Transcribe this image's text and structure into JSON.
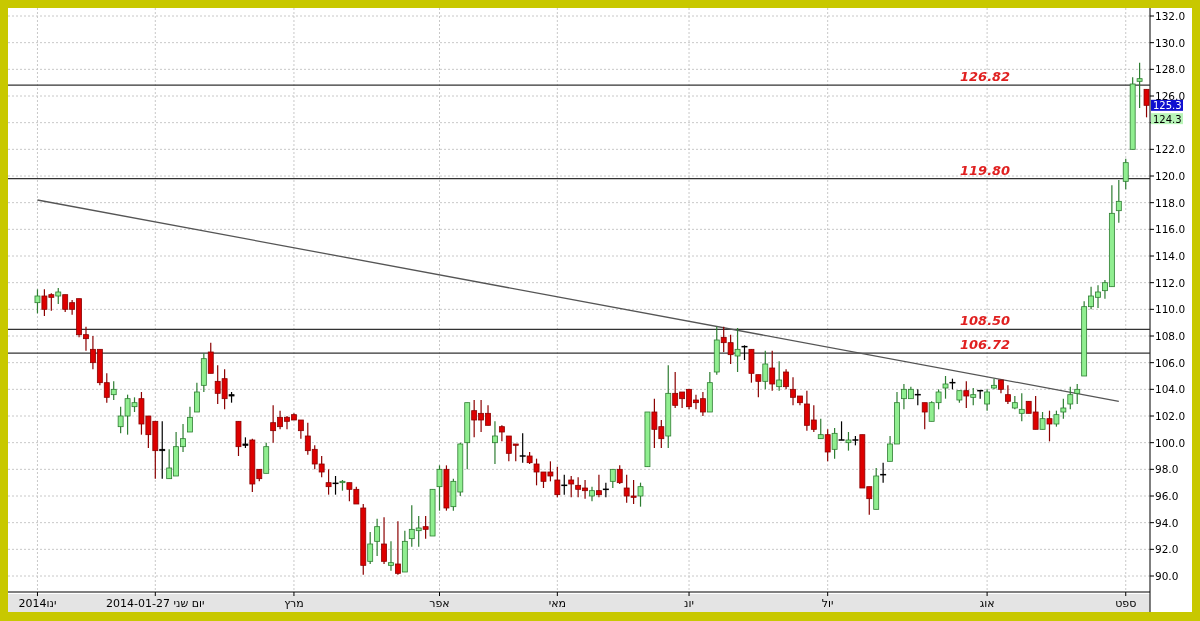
{
  "chart_data": {
    "type": "candlestick",
    "categories": [
      "2014ינו",
      null,
      null,
      null,
      null,
      null,
      null,
      null,
      null,
      null,
      null,
      null,
      null,
      null,
      null,
      null,
      null,
      "2014-01-27 יום שני",
      null,
      null,
      null,
      null,
      null,
      null,
      null,
      null,
      null,
      null,
      null,
      null,
      null,
      null,
      null,
      null,
      null,
      null,
      null,
      "מרץ",
      null,
      null,
      null,
      null,
      null,
      null,
      null,
      null,
      null,
      null,
      null,
      null,
      null,
      null,
      null,
      null,
      null,
      null,
      null,
      null,
      "אפר",
      null,
      null,
      null,
      null,
      null,
      null,
      null,
      null,
      null,
      null,
      null,
      null,
      null,
      null,
      null,
      null,
      "מאי",
      null,
      null,
      null,
      null,
      null,
      null,
      null,
      null,
      null,
      null,
      null,
      null,
      null,
      null,
      null,
      null,
      null,
      null,
      "יונ",
      null,
      null,
      null,
      null,
      null,
      null,
      null,
      null,
      null,
      null,
      null,
      null,
      null,
      null,
      null,
      null,
      null,
      null,
      null,
      "יול",
      null,
      null,
      null,
      null,
      null,
      null,
      null,
      null,
      null,
      null,
      null,
      null,
      null,
      null,
      null,
      null,
      null,
      null,
      null,
      null,
      null,
      null,
      "אוג",
      null,
      null,
      null,
      null,
      null,
      null,
      null,
      null,
      null,
      null,
      null,
      null,
      null,
      null,
      null,
      null,
      null,
      null,
      null,
      "ספט",
      null,
      null,
      null
    ],
    "ohlc": [
      [
        110.5,
        111.5,
        109.7,
        111.0
      ],
      [
        111.0,
        111.5,
        109.5,
        110.0
      ],
      [
        111.1,
        111.2,
        109.9,
        110.9
      ],
      [
        111.0,
        111.6,
        110.4,
        111.3
      ],
      [
        111.1,
        111.1,
        109.8,
        110.0
      ],
      [
        110.5,
        110.7,
        109.6,
        110.0
      ],
      [
        110.8,
        110.8,
        107.9,
        108.1
      ],
      [
        108.1,
        108.7,
        106.9,
        107.8
      ],
      [
        107.0,
        108.0,
        105.5,
        106.0
      ],
      [
        107.0,
        107.0,
        104.3,
        104.5
      ],
      [
        104.5,
        105.2,
        103.0,
        103.4
      ],
      [
        103.6,
        104.6,
        103.2,
        104.0
      ],
      [
        101.2,
        102.7,
        100.7,
        102.0
      ],
      [
        102.0,
        103.6,
        100.6,
        103.3
      ],
      [
        102.7,
        103.4,
        102.3,
        103.0
      ],
      [
        103.3,
        103.8,
        100.6,
        101.4
      ],
      [
        102.0,
        102.0,
        99.6,
        100.6
      ],
      [
        101.6,
        101.6,
        97.3,
        99.4
      ],
      [
        99.5,
        101.6,
        97.3,
        99.4
      ],
      [
        97.3,
        99.5,
        97.3,
        98.1
      ],
      [
        97.5,
        100.8,
        97.5,
        99.7
      ],
      [
        99.7,
        101.4,
        99.3,
        100.3
      ],
      [
        100.8,
        102.7,
        100.8,
        101.9
      ],
      [
        102.3,
        104.5,
        102.3,
        103.8
      ],
      [
        104.3,
        106.7,
        103.8,
        106.3
      ],
      [
        106.8,
        107.5,
        105.2,
        105.2
      ],
      [
        104.6,
        105.8,
        102.9,
        103.7
      ],
      [
        104.8,
        105.5,
        102.5,
        103.3
      ],
      [
        103.6,
        103.8,
        103.0,
        103.5
      ],
      [
        101.6,
        101.6,
        99.0,
        99.7
      ],
      [
        99.9,
        100.4,
        99.6,
        99.8
      ],
      [
        100.2,
        100.3,
        96.3,
        96.9
      ],
      [
        98.0,
        98.0,
        97.1,
        97.3
      ],
      [
        97.7,
        100.0,
        97.7,
        99.7
      ],
      [
        101.5,
        102.8,
        100.0,
        100.9
      ],
      [
        101.9,
        102.4,
        101.0,
        101.2
      ],
      [
        101.9,
        102.0,
        101.0,
        101.6
      ],
      [
        102.1,
        102.2,
        101.7,
        101.7
      ],
      [
        101.7,
        101.7,
        100.3,
        100.9
      ],
      [
        100.5,
        101.5,
        99.1,
        99.4
      ],
      [
        99.5,
        99.8,
        98.0,
        98.4
      ],
      [
        98.4,
        99.0,
        97.4,
        97.8
      ],
      [
        97.0,
        98.0,
        96.1,
        96.7
      ],
      [
        96.95,
        97.5,
        96.1,
        96.9
      ],
      [
        97.0,
        97.2,
        96.4,
        97.1
      ],
      [
        97.0,
        97.0,
        95.6,
        96.5
      ],
      [
        96.5,
        96.7,
        95.4,
        95.4
      ],
      [
        95.1,
        95.4,
        90.1,
        90.8
      ],
      [
        91.1,
        93.3,
        90.9,
        92.4
      ],
      [
        92.6,
        94.3,
        91.5,
        93.7
      ],
      [
        92.4,
        94.4,
        90.9,
        91.1
      ],
      [
        90.8,
        92.6,
        90.4,
        91.0
      ],
      [
        90.9,
        94.1,
        90.1,
        90.2
      ],
      [
        90.3,
        93.4,
        90.3,
        92.6
      ],
      [
        92.8,
        95.3,
        92.2,
        93.5
      ],
      [
        93.4,
        94.5,
        92.2,
        93.6
      ],
      [
        93.7,
        94.5,
        92.8,
        93.5
      ],
      [
        93.0,
        96.5,
        93.0,
        96.5
      ],
      [
        96.7,
        98.3,
        94.9,
        98.0
      ],
      [
        98.0,
        98.3,
        94.9,
        95.1
      ],
      [
        95.2,
        97.3,
        94.9,
        97.1
      ],
      [
        96.3,
        100.0,
        96.0,
        99.9
      ],
      [
        100.0,
        103.0,
        98.0,
        103.0
      ],
      [
        102.4,
        103.2,
        100.4,
        101.7
      ],
      [
        102.2,
        103.2,
        100.8,
        101.7
      ],
      [
        102.2,
        102.8,
        101.3,
        101.3
      ],
      [
        100.0,
        101.6,
        98.4,
        100.5
      ],
      [
        101.2,
        101.3,
        100.1,
        100.8
      ],
      [
        100.5,
        100.5,
        98.6,
        99.2
      ],
      [
        99.9,
        99.9,
        98.6,
        99.8
      ],
      [
        99.0,
        100.7,
        98.5,
        99.0
      ],
      [
        99.0,
        99.3,
        98.4,
        98.5
      ],
      [
        98.4,
        98.8,
        96.8,
        97.8
      ],
      [
        97.8,
        97.8,
        96.6,
        97.1
      ],
      [
        97.8,
        98.6,
        97.1,
        97.5
      ],
      [
        97.2,
        98.2,
        95.9,
        96.1
      ],
      [
        96.8,
        97.6,
        96.1,
        96.8
      ],
      [
        97.2,
        97.5,
        95.9,
        96.9
      ],
      [
        96.8,
        97.4,
        95.9,
        96.5
      ],
      [
        96.6,
        97.2,
        95.8,
        96.4
      ],
      [
        96.0,
        96.7,
        95.6,
        96.4
      ],
      [
        96.4,
        97.6,
        95.9,
        96.1
      ],
      [
        96.5,
        97.0,
        95.9,
        96.5
      ],
      [
        97.1,
        98.0,
        96.6,
        98.0
      ],
      [
        98.0,
        98.3,
        96.9,
        97.0
      ],
      [
        96.6,
        97.6,
        95.5,
        96.0
      ],
      [
        96.0,
        97.2,
        95.4,
        95.9
      ],
      [
        96.0,
        97.0,
        95.2,
        96.7
      ],
      [
        98.2,
        102.3,
        98.2,
        102.3
      ],
      [
        102.3,
        103.3,
        99.6,
        101.0
      ],
      [
        101.2,
        101.7,
        99.6,
        100.3
      ],
      [
        100.5,
        105.8,
        99.6,
        103.7
      ],
      [
        103.7,
        105.3,
        102.6,
        102.8
      ],
      [
        103.8,
        103.8,
        102.6,
        103.3
      ],
      [
        104.0,
        104.0,
        102.5,
        102.7
      ],
      [
        103.2,
        103.6,
        102.5,
        103.0
      ],
      [
        103.3,
        103.8,
        102.0,
        102.3
      ],
      [
        102.3,
        105.3,
        102.3,
        104.5
      ],
      [
        105.3,
        108.7,
        105.1,
        107.7
      ],
      [
        107.9,
        108.7,
        106.8,
        107.5
      ],
      [
        107.5,
        108.1,
        105.9,
        106.6
      ],
      [
        106.5,
        108.6,
        105.3,
        107.0
      ],
      [
        107.2,
        107.3,
        106.2,
        107.2
      ],
      [
        107.0,
        107.0,
        104.5,
        105.2
      ],
      [
        105.1,
        105.1,
        103.4,
        104.6
      ],
      [
        104.6,
        106.9,
        104.0,
        105.9
      ],
      [
        105.6,
        106.9,
        103.9,
        104.4
      ],
      [
        104.2,
        106.1,
        103.9,
        104.7
      ],
      [
        105.3,
        105.5,
        104.0,
        104.2
      ],
      [
        104.0,
        104.9,
        102.8,
        103.4
      ],
      [
        103.5,
        103.5,
        102.8,
        103.0
      ],
      [
        102.9,
        103.9,
        100.9,
        101.3
      ],
      [
        101.7,
        102.8,
        100.8,
        101.0
      ],
      [
        100.3,
        101.8,
        100.3,
        100.6
      ],
      [
        100.6,
        101.0,
        98.6,
        99.3
      ],
      [
        99.5,
        101.1,
        98.8,
        100.7
      ],
      [
        100.2,
        101.6,
        100.2,
        100.2
      ],
      [
        100.0,
        100.8,
        99.4,
        100.2
      ],
      [
        100.2,
        100.5,
        99.8,
        100.2
      ],
      [
        100.6,
        100.6,
        96.6,
        96.6
      ],
      [
        96.7,
        96.7,
        94.6,
        95.8
      ],
      [
        95.0,
        98.1,
        95.0,
        97.5
      ],
      [
        97.6,
        98.5,
        97.0,
        97.6
      ],
      [
        98.6,
        100.5,
        98.6,
        99.9
      ],
      [
        99.9,
        103.8,
        99.9,
        103.0
      ],
      [
        103.3,
        104.4,
        102.5,
        104.0
      ],
      [
        103.3,
        104.2,
        103.3,
        104.0
      ],
      [
        103.6,
        104.0,
        102.8,
        103.6
      ],
      [
        103.0,
        103.0,
        101.0,
        102.3
      ],
      [
        101.6,
        103.1,
        101.6,
        103.0
      ],
      [
        103.0,
        104.0,
        102.5,
        103.8
      ],
      [
        104.1,
        105.0,
        103.3,
        104.4
      ],
      [
        104.5,
        104.8,
        104.0,
        104.5
      ],
      [
        103.2,
        103.9,
        103.0,
        103.9
      ],
      [
        103.9,
        104.6,
        102.6,
        103.5
      ],
      [
        103.4,
        104.1,
        102.8,
        103.6
      ],
      [
        103.9,
        103.9,
        103.3,
        103.9
      ],
      [
        102.9,
        104.0,
        102.4,
        103.8
      ],
      [
        104.1,
        104.8,
        104.0,
        104.3
      ],
      [
        104.7,
        104.7,
        103.7,
        104.0
      ],
      [
        103.6,
        104.3,
        102.9,
        103.1
      ],
      [
        102.6,
        103.5,
        102.5,
        103.0
      ],
      [
        102.2,
        103.7,
        101.6,
        102.5
      ],
      [
        103.1,
        103.1,
        102.2,
        102.2
      ],
      [
        102.3,
        103.5,
        101.0,
        101.0
      ],
      [
        101.0,
        102.3,
        101.0,
        101.8
      ],
      [
        101.8,
        102.4,
        100.1,
        101.4
      ],
      [
        101.4,
        102.4,
        101.2,
        102.1
      ],
      [
        102.3,
        103.3,
        101.8,
        102.6
      ],
      [
        102.9,
        104.2,
        102.5,
        103.6
      ],
      [
        103.7,
        104.4,
        102.9,
        104.0
      ],
      [
        105.0,
        110.6,
        105.0,
        110.2
      ],
      [
        110.2,
        111.7,
        110.0,
        111.0
      ],
      [
        110.9,
        111.8,
        110.1,
        111.3
      ],
      [
        111.4,
        112.2,
        110.8,
        112.0
      ],
      [
        111.7,
        119.3,
        111.7,
        117.2
      ],
      [
        117.4,
        119.7,
        116.5,
        118.1
      ],
      [
        119.6,
        121.3,
        119.0,
        121.0
      ],
      [
        122.0,
        127.4,
        122.0,
        126.9
      ],
      [
        127.1,
        128.5,
        125.1,
        127.3
      ],
      [
        126.5,
        126.5,
        124.4,
        125.3
      ]
    ],
    "colors": [
      "#90ee90",
      "#dd0000",
      "#dd0000",
      "#90ee90",
      "#dd0000",
      "#dd0000",
      "#dd0000",
      "#dd0000",
      "#dd0000",
      "#dd0000",
      "#dd0000",
      "#90ee90",
      "#90ee90",
      "#90ee90",
      "#90ee90",
      "#dd0000",
      "#dd0000",
      "#dd0000",
      "#000000",
      "#90ee90",
      "#90ee90",
      "#90ee90",
      "#90ee90",
      "#90ee90",
      "#90ee90",
      "#dd0000",
      "#dd0000",
      "#dd0000",
      "#000000",
      "#dd0000",
      "#000000",
      "#dd0000",
      "#dd0000",
      "#90ee90",
      "#dd0000",
      "#dd0000",
      "#dd0000",
      "#dd0000",
      "#dd0000",
      "#dd0000",
      "#dd0000",
      "#dd0000",
      "#dd0000",
      "#000000",
      "#90ee90",
      "#dd0000",
      "#dd0000",
      "#dd0000",
      "#90ee90",
      "#90ee90",
      "#dd0000",
      "#90ee90",
      "#dd0000",
      "#90ee90",
      "#90ee90",
      "#90ee90",
      "#dd0000",
      "#90ee90",
      "#90ee90",
      "#dd0000",
      "#90ee90",
      "#90ee90",
      "#90ee90",
      "#dd0000",
      "#dd0000",
      "#dd0000",
      "#90ee90",
      "#dd0000",
      "#dd0000",
      "#dd0000",
      "#000000",
      "#dd0000",
      "#dd0000",
      "#dd0000",
      "#dd0000",
      "#dd0000",
      "#000000",
      "#dd0000",
      "#dd0000",
      "#dd0000",
      "#90ee90",
      "#dd0000",
      "#000000",
      "#90ee90",
      "#dd0000",
      "#dd0000",
      "#dd0000",
      "#90ee90",
      "#90ee90",
      "#dd0000",
      "#dd0000",
      "#90ee90",
      "#dd0000",
      "#dd0000",
      "#dd0000",
      "#dd0000",
      "#dd0000",
      "#90ee90",
      "#90ee90",
      "#dd0000",
      "#dd0000",
      "#90ee90",
      "#000000",
      "#dd0000",
      "#dd0000",
      "#90ee90",
      "#dd0000",
      "#90ee90",
      "#dd0000",
      "#dd0000",
      "#dd0000",
      "#dd0000",
      "#dd0000",
      "#90ee90",
      "#dd0000",
      "#90ee90",
      "#000000",
      "#90ee90",
      "#000000",
      "#dd0000",
      "#dd0000",
      "#90ee90",
      "#000000",
      "#90ee90",
      "#90ee90",
      "#90ee90",
      "#90ee90",
      "#000000",
      "#dd0000",
      "#90ee90",
      "#90ee90",
      "#90ee90",
      "#000000",
      "#90ee90",
      "#dd0000",
      "#90ee90",
      "#000000",
      "#90ee90",
      "#90ee90",
      "#dd0000",
      "#dd0000",
      "#90ee90",
      "#90ee90",
      "#dd0000",
      "#dd0000",
      "#90ee90",
      "#dd0000",
      "#90ee90",
      "#90ee90",
      "#90ee90",
      "#90ee90",
      "#90ee90",
      "#90ee90",
      "#90ee90",
      "#90ee90",
      "#90ee90",
      "#90ee90",
      "#90ee90",
      "#90ee90",
      "#90ee90",
      "#dd0000"
    ],
    "series": [
      {
        "type": "line",
        "color": "#555555",
        "values": [
          118.2,
          null,
          null,
          null,
          null,
          null,
          null,
          null,
          null,
          null,
          null,
          null,
          null,
          null,
          null,
          null,
          null,
          null,
          null,
          null,
          null,
          null,
          null,
          null,
          null,
          null,
          null,
          null,
          null,
          null,
          null,
          null,
          null,
          null,
          null,
          null,
          null,
          null,
          null,
          null,
          null,
          null,
          null,
          null,
          null,
          null,
          null,
          null,
          null,
          null,
          null,
          null,
          null,
          null,
          null,
          null,
          null,
          null,
          null,
          null,
          null,
          null,
          null,
          null,
          null,
          null,
          null,
          null,
          null,
          null,
          null,
          null,
          null,
          null,
          null,
          null,
          null,
          null,
          null,
          null,
          null,
          null,
          null,
          null,
          null,
          null,
          null,
          null,
          null,
          null,
          null,
          null,
          null,
          null,
          null,
          null,
          null,
          null,
          null,
          null,
          null,
          null,
          null,
          null,
          null,
          null,
          null,
          null,
          null,
          null,
          null,
          null,
          null,
          null,
          null,
          null,
          null,
          null,
          null,
          null,
          null,
          null,
          null,
          null,
          null,
          null,
          null,
          null,
          null,
          null,
          null,
          null,
          null,
          null,
          null,
          null,
          null,
          null,
          null,
          null,
          null,
          null,
          null,
          null,
          null,
          null,
          null,
          null,
          null,
          null,
          null,
          null,
          null,
          null,
          null,
          null,
          103.1,
          null,
          null,
          null,
          null
        ]
      }
    ],
    "ylim": [
      88.8,
      132.6
    ],
    "yticks": [
      {
        "value": 90,
        "label": "90.0"
      },
      {
        "value": 92,
        "label": "92.0"
      },
      {
        "value": 94,
        "label": "94.0"
      },
      {
        "value": 96,
        "label": "96.0"
      },
      {
        "value": 98,
        "label": "98.0"
      },
      {
        "value": 100,
        "label": "100.0"
      },
      {
        "value": 102,
        "label": "102.0"
      },
      {
        "value": 104,
        "label": "104.0"
      },
      {
        "value": 106,
        "label": "106.0"
      },
      {
        "value": 108,
        "label": "108.0"
      },
      {
        "value": 110,
        "label": "110.0"
      },
      {
        "value": 112,
        "label": "112.0"
      },
      {
        "value": 114,
        "label": "114.0"
      },
      {
        "value": 116,
        "label": "116.0"
      },
      {
        "value": 118,
        "label": "118.0"
      },
      {
        "value": 120,
        "label": "120.0"
      },
      {
        "value": 122,
        "label": "122.0"
      },
      {
        "value": 124,
        "label": null
      },
      {
        "value": 126,
        "label": "126.0"
      },
      {
        "value": 128,
        "label": "128.0"
      },
      {
        "value": 130,
        "label": "130.0"
      },
      {
        "value": 132,
        "label": "132.0"
      }
    ],
    "ref_lines": [
      {
        "axis": "y",
        "value": 126.82,
        "label": "126.82",
        "color": "#333333"
      },
      {
        "axis": "y",
        "value": 119.8,
        "label": "119.80",
        "color": "#333333"
      },
      {
        "axis": "y",
        "value": 108.5,
        "label": "108.50",
        "color": "#333333"
      },
      {
        "axis": "y",
        "value": 106.72,
        "label": "106.72",
        "color": "#333333"
      }
    ],
    "annotations": [
      {
        "text": "125.3",
        "y": 125.3
      },
      {
        "text": "124.3",
        "y": 124.3
      }
    ],
    "grid": true
  }
}
